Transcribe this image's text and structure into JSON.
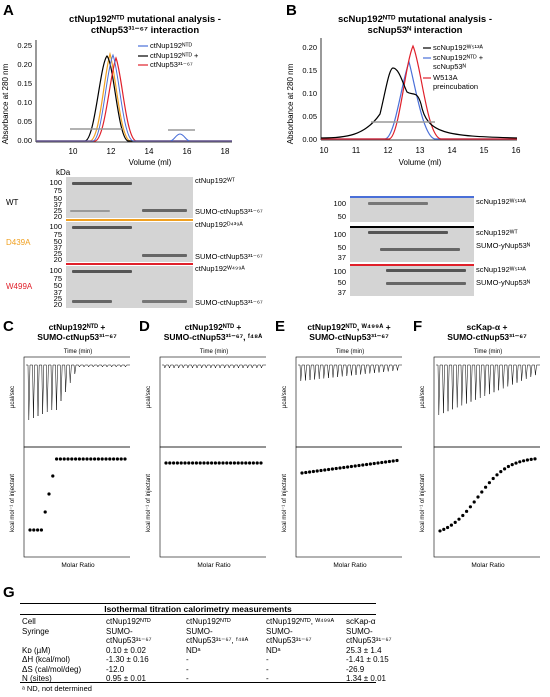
{
  "panelA": {
    "letter": "A",
    "title1": "ctNup192ᴺᵀᴰ mutational analysis -",
    "title2": "ctNup53³¹⁻⁶⁷ interaction",
    "ylabel": "Absorbance at 280 nm",
    "xlabel": "Volume (ml)",
    "yticks": [
      "0.00",
      "0.05",
      "0.10",
      "0.15",
      "0.20",
      "0.25"
    ],
    "xticks": [
      "10",
      "12",
      "14",
      "16",
      "18"
    ],
    "legend": [
      "ctNup192ᴺᵀᴰ",
      "ctNup192ᴺᵀᴰ +",
      "ctNup53³¹⁻⁶⁷"
    ],
    "kda": "kDa",
    "rows": [
      {
        "label": "WT",
        "color": "#000000",
        "mw": [
          "100",
          "75",
          "50",
          "37",
          "25",
          "20"
        ],
        "bands": [
          "ctNup192ᵂᵀ",
          "SUMO-ctNup53³¹⁻⁶⁷"
        ]
      },
      {
        "label": "D439A",
        "color": "#f0a020",
        "mw": [
          "100",
          "75",
          "50",
          "37",
          "25",
          "20"
        ],
        "bands": [
          "ctNup192ᴰ⁴³⁹ᴬ",
          "SUMO-ctNup53³¹⁻⁶⁷"
        ]
      },
      {
        "label": "W499A",
        "color": "#e0202a",
        "mw": [
          "100",
          "75",
          "50",
          "37",
          "25",
          "20"
        ],
        "bands": [
          "ctNup192ᵂ⁴⁹⁹ᴬ",
          "SUMO-ctNup53³¹⁻⁶⁷"
        ]
      }
    ]
  },
  "panelB": {
    "letter": "B",
    "title1": "scNup192ᴺᵀᴰ mutational analysis -",
    "title2": "scNup53ᴺ interaction",
    "ylabel": "Absorbance at 280 nm",
    "xlabel": "Volume (ml)",
    "yticks": [
      "0.00",
      "0.05",
      "0.10",
      "0.15",
      "0.20"
    ],
    "xticks": [
      "10",
      "11",
      "12",
      "13",
      "14",
      "15",
      "16"
    ],
    "legend": [
      "scNup192ᵂ⁵¹³ᴬ",
      "scNup192ᴺᵀᴰ +",
      "scNup53ᴺ",
      "W513A",
      "preincubation"
    ],
    "rows": [
      {
        "color": "#4a6fd8",
        "mw": [
          "100",
          "50"
        ],
        "bands": [
          "scNup192ᵂ⁵¹³ᴬ"
        ]
      },
      {
        "color": "#000000",
        "mw": [
          "100",
          "50",
          "37"
        ],
        "bands": [
          "scNup192ᵂᵀ",
          "SUMO-yNup53ᴺ"
        ]
      },
      {
        "color": "#e0202a",
        "mw": [
          "100",
          "50",
          "37"
        ],
        "bands": [
          "scNup192ᵂ⁵¹³ᴬ",
          "SUMO-yNup53ᴺ"
        ]
      }
    ]
  },
  "itc_panels": [
    {
      "letter": "C",
      "t1": "ctNup192ᴺᵀᴰ +",
      "t2": "SUMO-ctNup53³¹⁻⁶⁷"
    },
    {
      "letter": "D",
      "t1": "ctNup192ᴺᵀᴰ +",
      "t2": "SUMO-ctNup53³¹⁻⁶⁷, ᶠ⁴⁸ᴬ"
    },
    {
      "letter": "E",
      "t1": "ctNup192ᴺᵀᴰ, ᵂ⁴⁹⁹ᴬ +",
      "t2": "SUMO-ctNup53³¹⁻⁶⁷"
    },
    {
      "letter": "F",
      "t1": "scKap-α +",
      "t2": "SUMO-ctNup53³¹⁻⁶⁷"
    }
  ],
  "itc_axis": {
    "time": "Time (min)",
    "ucal": "µcal/sec",
    "kcal": "kcal mol⁻¹ of injectant",
    "molar": "Molar Ratio"
  },
  "panelG": {
    "letter": "G",
    "title": "Isothermal titration calorimetry measurements",
    "rows": [
      [
        "Cell",
        "ctNup192ᴺᵀᴰ",
        "ctNup192ᴺᵀᴰ",
        "ctNup192ᴺᵀᴰ, ᵂ⁴⁹⁹ᴬ",
        "scKap-α"
      ],
      [
        "Syringe",
        "SUMO-",
        "SUMO-",
        "SUMO-",
        "SUMO-"
      ],
      [
        "",
        "ctNup53³¹⁻⁶⁷",
        "ctNup53³¹⁻⁶⁷, ᶠ⁴⁸ᴬ",
        "ctNup53³¹⁻⁶⁷",
        "ctNup53³¹⁻⁶⁷"
      ],
      [
        "Kᴅ (µM)",
        "0.10 ± 0.02",
        "NDᵃ",
        "NDᵃ",
        "25.3 ± 1.4"
      ],
      [
        "ΔH (kcal/mol)",
        "-1.30 ± 0.16",
        "-",
        "-",
        "-1.41 ± 0.15"
      ],
      [
        "ΔS (cal/mol/deg)",
        "-12.0",
        "-",
        "-",
        "-26.9"
      ],
      [
        "N (sites)",
        "0.95 ± 0.01",
        "-",
        "-",
        "1.34 ± 0.01"
      ]
    ],
    "footnote": "ᵃ ND, not determined"
  },
  "colors": {
    "blue": "#4a6fd8",
    "black": "#000000",
    "orange": "#f0a020",
    "red": "#e0202a",
    "gray": "#999999"
  }
}
